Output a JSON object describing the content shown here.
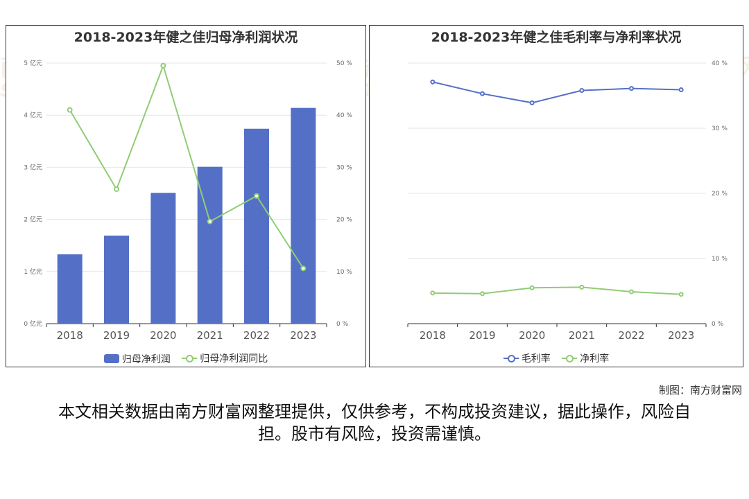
{
  "charts": {
    "left_title": "2018-2023年健之佳归母净利润状况",
    "right_title": "2018-2023年健之佳毛利率与净利率状况"
  },
  "chart_data": [
    {
      "type": "bar",
      "title": "2018-2023年健之佳归母净利润状况",
      "categories": [
        "2018",
        "2019",
        "2020",
        "2021",
        "2022",
        "2023"
      ],
      "series": [
        {
          "name": "归母净利润",
          "type": "bar",
          "axis": "left",
          "values": [
            1.33,
            1.69,
            2.51,
            3.01,
            3.74,
            4.14
          ]
        },
        {
          "name": "归母净利润同比",
          "type": "line",
          "axis": "right",
          "values": [
            41.0,
            25.8,
            49.5,
            19.6,
            24.5,
            10.6
          ]
        }
      ],
      "y_left": {
        "ticks": [
          "0 亿元",
          "1 亿元",
          "2 亿元",
          "3 亿元",
          "4 亿元",
          "5 亿元"
        ],
        "range": [
          0,
          5
        ]
      },
      "y_right": {
        "ticks": [
          "0 %",
          "10 %",
          "20 %",
          "30 %",
          "40 %",
          "50 %"
        ],
        "range": [
          0,
          50
        ]
      },
      "grid": true,
      "legend": "bottom",
      "colors": {
        "bar": "#5470c6",
        "line": "#91cc75"
      }
    },
    {
      "type": "line",
      "title": "2018-2023年健之佳毛利率与净利率状况",
      "categories": [
        "2018",
        "2019",
        "2020",
        "2021",
        "2022",
        "2023"
      ],
      "series": [
        {
          "name": "毛利率",
          "values": [
            37.1,
            35.3,
            33.9,
            35.8,
            36.1,
            35.9
          ]
        },
        {
          "name": "净利率",
          "values": [
            4.7,
            4.6,
            5.5,
            5.6,
            4.9,
            4.5
          ]
        }
      ],
      "y_right": {
        "ticks": [
          "0 %",
          "10 %",
          "20 %",
          "30 %",
          "40 %"
        ],
        "range": [
          0,
          40
        ]
      },
      "grid": true,
      "legend": "bottom",
      "colors": {
        "gross": "#5470c6",
        "net": "#91cc75"
      }
    }
  ],
  "watermark": {
    "text_cn": "南方财富网",
    "text_en": "southmoney.com"
  },
  "footer": {
    "credit": "制图：南方财富网",
    "disclaimer": "本文相关数据由南方财富网整理提供，仅供参考，不构成投资建议，据此操作，风险自担。股市有风险，投资需谨慎。"
  }
}
